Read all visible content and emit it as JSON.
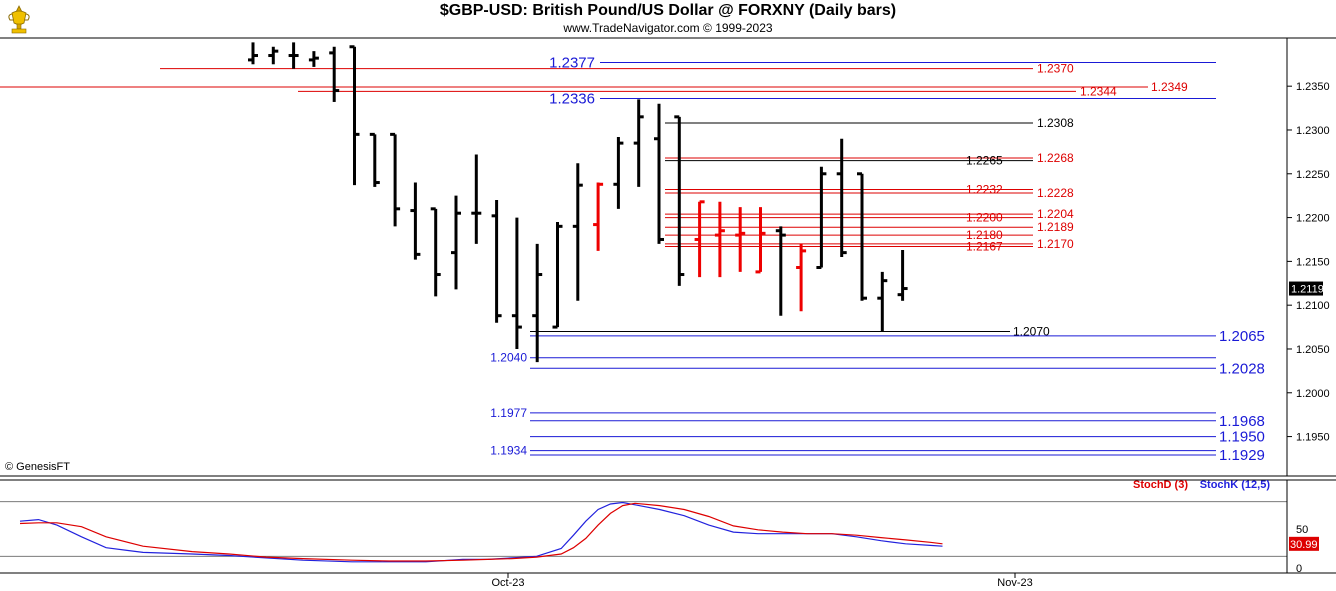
{
  "header": {
    "title": "$GBP-USD:  British Pound/US Dollar @ FORXNY  (Daily bars)",
    "subtitle": "www.TradeNavigator.com © 1999-2023",
    "copyright": "© GenesisFT",
    "logo_icon": "trophy-icon"
  },
  "colors": {
    "up_bar": "#000000",
    "down_bar": "#ee0000",
    "blue_level": "#1a1ad6",
    "red_level": "#dd0000",
    "black_level": "#000000",
    "stoch_k": "#2222dd",
    "stoch_d": "#dd0000",
    "last_price_bg": "#000000",
    "stoch_value_bg": "#dd0000"
  },
  "chart_data": [
    {
      "type": "ohlc",
      "title": "$GBP-USD:  British Pound/US Dollar @ FORXNY  (Daily bars)",
      "y_range": [
        1.1905,
        1.2405
      ],
      "y_ticks": [
        "1.2350",
        "1.2300",
        "1.2250",
        "1.2200",
        "1.2150",
        "1.2100",
        "1.2050",
        "1.2000",
        "1.1950"
      ],
      "x_labels": [
        "Oct-23",
        "Nov-23"
      ],
      "last_price": "1.2119",
      "bars": [
        {
          "o": 1.238,
          "h": 1.24,
          "l": 1.2375,
          "c": 1.2385,
          "color": "up"
        },
        {
          "o": 1.2385,
          "h": 1.2395,
          "l": 1.2375,
          "c": 1.239,
          "color": "up"
        },
        {
          "o": 1.2385,
          "h": 1.24,
          "l": 1.237,
          "c": 1.2385,
          "color": "up"
        },
        {
          "o": 1.238,
          "h": 1.239,
          "l": 1.2372,
          "c": 1.2382,
          "color": "up"
        },
        {
          "o": 1.2388,
          "h": 1.2395,
          "l": 1.2332,
          "c": 1.2345,
          "color": "up"
        },
        {
          "o": 1.2395,
          "h": 1.2395,
          "l": 1.2237,
          "c": 1.2295,
          "color": "up"
        },
        {
          "o": 1.2295,
          "h": 1.2295,
          "l": 1.2235,
          "c": 1.224,
          "color": "up"
        },
        {
          "o": 1.2295,
          "h": 1.2295,
          "l": 1.219,
          "c": 1.221,
          "color": "up"
        },
        {
          "o": 1.2208,
          "h": 1.224,
          "l": 1.2152,
          "c": 1.2158,
          "color": "up"
        },
        {
          "o": 1.221,
          "h": 1.221,
          "l": 1.211,
          "c": 1.2135,
          "color": "up"
        },
        {
          "o": 1.216,
          "h": 1.2225,
          "l": 1.2118,
          "c": 1.2205,
          "color": "up"
        },
        {
          "o": 1.2205,
          "h": 1.2272,
          "l": 1.217,
          "c": 1.2205,
          "color": "up"
        },
        {
          "o": 1.2202,
          "h": 1.222,
          "l": 1.208,
          "c": 1.2088,
          "color": "up"
        },
        {
          "o": 1.2088,
          "h": 1.22,
          "l": 1.205,
          "c": 1.2075,
          "color": "up"
        },
        {
          "o": 1.2088,
          "h": 1.217,
          "l": 1.2035,
          "c": 1.2135,
          "color": "up"
        },
        {
          "o": 1.2075,
          "h": 1.2195,
          "l": 1.2075,
          "c": 1.219,
          "color": "up"
        },
        {
          "o": 1.219,
          "h": 1.2262,
          "l": 1.2105,
          "c": 1.2237,
          "color": "up"
        },
        {
          "o": 1.2192,
          "h": 1.224,
          "l": 1.2162,
          "c": 1.2238,
          "color": "down"
        },
        {
          "o": 1.2238,
          "h": 1.2292,
          "l": 1.221,
          "c": 1.2285,
          "color": "up"
        },
        {
          "o": 1.2285,
          "h": 1.2335,
          "l": 1.2235,
          "c": 1.2315,
          "color": "up"
        },
        {
          "o": 1.229,
          "h": 1.233,
          "l": 1.217,
          "c": 1.2175,
          "color": "up"
        },
        {
          "o": 1.2315,
          "h": 1.2315,
          "l": 1.2122,
          "c": 1.2135,
          "color": "up"
        },
        {
          "o": 1.2175,
          "h": 1.2218,
          "l": 1.2132,
          "c": 1.2218,
          "color": "down"
        },
        {
          "o": 1.218,
          "h": 1.2218,
          "l": 1.2132,
          "c": 1.2185,
          "color": "down"
        },
        {
          "o": 1.218,
          "h": 1.2212,
          "l": 1.2138,
          "c": 1.2182,
          "color": "down"
        },
        {
          "o": 1.2138,
          "h": 1.2212,
          "l": 1.2138,
          "c": 1.2182,
          "color": "down"
        },
        {
          "o": 1.2185,
          "h": 1.219,
          "l": 1.2088,
          "c": 1.218,
          "color": "up"
        },
        {
          "o": 1.2143,
          "h": 1.217,
          "l": 1.2093,
          "c": 1.2162,
          "color": "down"
        },
        {
          "o": 1.2143,
          "h": 1.2258,
          "l": 1.2143,
          "c": 1.225,
          "color": "up"
        },
        {
          "o": 1.225,
          "h": 1.229,
          "l": 1.2155,
          "c": 1.216,
          "color": "up"
        },
        {
          "o": 1.225,
          "h": 1.225,
          "l": 1.2105,
          "c": 1.2108,
          "color": "up"
        },
        {
          "o": 1.2108,
          "h": 1.2138,
          "l": 1.207,
          "c": 1.2128,
          "color": "up"
        },
        {
          "o": 1.2112,
          "h": 1.2163,
          "l": 1.2105,
          "c": 1.2119,
          "color": "up"
        }
      ],
      "levels": [
        {
          "value": 1.2377,
          "label": "1.2377",
          "color": "blue",
          "label_side": "left",
          "label_size": "large"
        },
        {
          "value": 1.237,
          "label": "1.2370",
          "color": "red",
          "label_side": "mid",
          "label_size": "small"
        },
        {
          "value": 1.2349,
          "label": "1.2349",
          "color": "red",
          "label_side": "right",
          "label_size": "small"
        },
        {
          "value": 1.2344,
          "label": "1.2344",
          "color": "red",
          "label_side": "mid",
          "label_size": "small"
        },
        {
          "value": 1.2336,
          "label": "1.2336",
          "color": "blue",
          "label_side": "left",
          "label_size": "large"
        },
        {
          "value": 1.2308,
          "label": "1.2308",
          "color": "black",
          "label_side": "mid",
          "label_size": "small"
        },
        {
          "value": 1.2268,
          "label": "1.2268",
          "color": "red",
          "label_side": "mid",
          "label_size": "small"
        },
        {
          "value": 1.2265,
          "label": "1.2265",
          "color": "black",
          "label_side": "inner",
          "label_size": "small"
        },
        {
          "value": 1.2232,
          "label": "1.2232",
          "color": "red",
          "label_side": "inner",
          "label_size": "small"
        },
        {
          "value": 1.2228,
          "label": "1.2228",
          "color": "red",
          "label_side": "mid",
          "label_size": "small"
        },
        {
          "value": 1.2204,
          "label": "1.2204",
          "color": "red",
          "label_side": "mid",
          "label_size": "small"
        },
        {
          "value": 1.22,
          "label": "1.2200",
          "color": "red",
          "label_side": "inner",
          "label_size": "small"
        },
        {
          "value": 1.2189,
          "label": "1.2189",
          "color": "red",
          "label_side": "mid",
          "label_size": "small"
        },
        {
          "value": 1.218,
          "label": "1.2180",
          "color": "red",
          "label_side": "inner",
          "label_size": "small"
        },
        {
          "value": 1.217,
          "label": "1.2170",
          "color": "red",
          "label_side": "mid",
          "label_size": "small"
        },
        {
          "value": 1.2167,
          "label": "1.2167",
          "color": "red",
          "label_side": "inner",
          "label_size": "small"
        },
        {
          "value": 1.207,
          "label": "1.2070",
          "color": "black",
          "label_side": "inner",
          "label_size": "small"
        },
        {
          "value": 1.2065,
          "label": "1.2065",
          "color": "blue",
          "label_side": "right",
          "label_size": "large"
        },
        {
          "value": 1.204,
          "label": "1.2040",
          "color": "blue",
          "label_side": "left",
          "label_size": "small"
        },
        {
          "value": 1.2028,
          "label": "1.2028",
          "color": "blue",
          "label_side": "right",
          "label_size": "large"
        },
        {
          "value": 1.1977,
          "label": "1.1977",
          "color": "blue",
          "label_side": "left",
          "label_size": "small"
        },
        {
          "value": 1.1968,
          "label": "1.1968",
          "color": "blue",
          "label_side": "right",
          "label_size": "large"
        },
        {
          "value": 1.195,
          "label": "1.1950",
          "color": "blue",
          "label_side": "right",
          "label_size": "large"
        },
        {
          "value": 1.1934,
          "label": "1.1934",
          "color": "blue",
          "label_side": "left",
          "label_size": "small"
        },
        {
          "value": 1.1929,
          "label": "1.1929",
          "color": "blue",
          "label_side": "right",
          "label_size": "large"
        }
      ]
    },
    {
      "type": "line",
      "y_range": [
        0,
        100
      ],
      "y_ticks": [
        "50",
        "0"
      ],
      "reference_lines": [
        85,
        15
      ],
      "legend": [
        "StochD (3)",
        "StochK (12,5)"
      ],
      "last_value": "30.99",
      "series": [
        {
          "name": "StochK (12,5)",
          "color": "blue",
          "values": [
            [
              0,
              60
            ],
            [
              1.5,
              62
            ],
            [
              3,
              55
            ],
            [
              5,
              40
            ],
            [
              7,
              26
            ],
            [
              10,
              20
            ],
            [
              14,
              18
            ],
            [
              17,
              16
            ],
            [
              20,
              13
            ],
            [
              23,
              10
            ],
            [
              27,
              8
            ],
            [
              30,
              8
            ],
            [
              33,
              8
            ],
            [
              36,
              11
            ],
            [
              38,
              11
            ],
            [
              40,
              13
            ],
            [
              42,
              15
            ],
            [
              44,
              25
            ],
            [
              45,
              42
            ],
            [
              46,
              60
            ],
            [
              47,
              75
            ],
            [
              48,
              82
            ],
            [
              49,
              84
            ],
            [
              50,
              81
            ],
            [
              52,
              75
            ],
            [
              54,
              67
            ],
            [
              56,
              55
            ],
            [
              58,
              46
            ],
            [
              60,
              44
            ],
            [
              62,
              44
            ],
            [
              64,
              44
            ],
            [
              66,
              44
            ],
            [
              68,
              40
            ],
            [
              70,
              35
            ],
            [
              72,
              31
            ],
            [
              74,
              29
            ],
            [
              75,
              28
            ]
          ]
        },
        {
          "name": "StochD (3)",
          "color": "red",
          "values": [
            [
              0,
              57
            ],
            [
              1.5,
              58
            ],
            [
              3,
              58
            ],
            [
              5,
              53
            ],
            [
              7,
              40
            ],
            [
              10,
              28
            ],
            [
              14,
              21
            ],
            [
              17,
              18
            ],
            [
              20,
              14
            ],
            [
              23,
              12
            ],
            [
              27,
              10
            ],
            [
              30,
              9
            ],
            [
              33,
              9
            ],
            [
              36,
              10
            ],
            [
              38,
              11
            ],
            [
              40,
              12
            ],
            [
              42,
              14
            ],
            [
              44,
              18
            ],
            [
              45,
              26
            ],
            [
              46,
              38
            ],
            [
              47,
              55
            ],
            [
              48,
              70
            ],
            [
              49,
              80
            ],
            [
              50,
              83
            ],
            [
              52,
              80
            ],
            [
              54,
              75
            ],
            [
              56,
              66
            ],
            [
              58,
              54
            ],
            [
              60,
              49
            ],
            [
              62,
              46
            ],
            [
              64,
              44
            ],
            [
              66,
              44
            ],
            [
              68,
              42
            ],
            [
              70,
              39
            ],
            [
              72,
              36
            ],
            [
              74,
              33
            ],
            [
              75,
              31
            ]
          ]
        }
      ]
    }
  ]
}
